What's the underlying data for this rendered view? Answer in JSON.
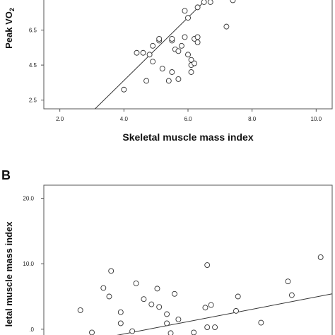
{
  "chart_data": [
    {
      "type": "scatter",
      "panel": "",
      "xlabel": "Skeletal muscle mass index",
      "ylabel": "Peak VO2",
      "xlim": [
        1.5,
        10.5
      ],
      "ylim": [
        2.0,
        8.3
      ],
      "x_ticks": [
        "2.0",
        "4.0",
        "6.0",
        "8.0",
        "10.0"
      ],
      "y_ticks": [
        "2.5",
        "4.5",
        "6.5"
      ],
      "fit_line": {
        "x1": 3.1,
        "y1": 2.0,
        "x2": 6.6,
        "y2": 8.3
      },
      "points": [
        {
          "x": 4.0,
          "y": 3.1
        },
        {
          "x": 4.4,
          "y": 5.2
        },
        {
          "x": 4.6,
          "y": 5.2
        },
        {
          "x": 4.7,
          "y": 3.6
        },
        {
          "x": 4.8,
          "y": 5.1
        },
        {
          "x": 4.9,
          "y": 4.7
        },
        {
          "x": 4.9,
          "y": 5.6
        },
        {
          "x": 5.1,
          "y": 5.9
        },
        {
          "x": 5.1,
          "y": 6.0
        },
        {
          "x": 5.2,
          "y": 4.3
        },
        {
          "x": 5.4,
          "y": 3.6
        },
        {
          "x": 5.5,
          "y": 4.1
        },
        {
          "x": 5.5,
          "y": 5.9
        },
        {
          "x": 5.5,
          "y": 6.0
        },
        {
          "x": 5.6,
          "y": 5.4
        },
        {
          "x": 5.7,
          "y": 5.3
        },
        {
          "x": 5.7,
          "y": 3.7
        },
        {
          "x": 5.8,
          "y": 5.6
        },
        {
          "x": 5.9,
          "y": 6.1
        },
        {
          "x": 5.9,
          "y": 7.6
        },
        {
          "x": 6.0,
          "y": 5.1
        },
        {
          "x": 6.0,
          "y": 7.2
        },
        {
          "x": 6.1,
          "y": 4.1
        },
        {
          "x": 6.1,
          "y": 4.5
        },
        {
          "x": 6.1,
          "y": 4.8
        },
        {
          "x": 6.2,
          "y": 4.6
        },
        {
          "x": 6.2,
          "y": 6.0
        },
        {
          "x": 6.3,
          "y": 5.8
        },
        {
          "x": 6.3,
          "y": 6.1
        },
        {
          "x": 6.3,
          "y": 7.8
        },
        {
          "x": 6.5,
          "y": 8.1
        },
        {
          "x": 6.7,
          "y": 8.1
        },
        {
          "x": 7.2,
          "y": 6.7
        },
        {
          "x": 7.4,
          "y": 8.2
        }
      ]
    },
    {
      "type": "scatter",
      "panel": "B",
      "xlabel": "",
      "ylabel": "letal muscle mass index",
      "xlim": [
        -1.5,
        13.5
      ],
      "ylim": [
        -1.1,
        22.0
      ],
      "x_ticks": [],
      "y_ticks": [
        ".0",
        "10.0",
        "20.0"
      ],
      "fit_line": {
        "x1": 2.0,
        "y1": -1.1,
        "x2": 13.5,
        "y2": 5.4
      },
      "points": [
        {
          "x": 0.4,
          "y": 2.9
        },
        {
          "x": 1.0,
          "y": -0.5
        },
        {
          "x": 1.6,
          "y": 6.3
        },
        {
          "x": 1.9,
          "y": 5.0
        },
        {
          "x": 2.0,
          "y": 8.9
        },
        {
          "x": 2.5,
          "y": 2.6
        },
        {
          "x": 2.5,
          "y": 0.9
        },
        {
          "x": 3.1,
          "y": -0.3
        },
        {
          "x": 3.3,
          "y": 7.0
        },
        {
          "x": 3.7,
          "y": 4.6
        },
        {
          "x": 4.1,
          "y": 3.8
        },
        {
          "x": 4.4,
          "y": 6.2
        },
        {
          "x": 4.5,
          "y": 3.4
        },
        {
          "x": 4.9,
          "y": 2.3
        },
        {
          "x": 4.9,
          "y": 0.9
        },
        {
          "x": 5.1,
          "y": -0.6
        },
        {
          "x": 5.3,
          "y": 5.4
        },
        {
          "x": 5.5,
          "y": 1.5
        },
        {
          "x": 6.3,
          "y": -0.5
        },
        {
          "x": 6.9,
          "y": 3.3
        },
        {
          "x": 7.0,
          "y": 9.8
        },
        {
          "x": 7.0,
          "y": 0.3
        },
        {
          "x": 7.2,
          "y": 3.7
        },
        {
          "x": 7.4,
          "y": 0.3
        },
        {
          "x": 8.5,
          "y": 2.8
        },
        {
          "x": 8.6,
          "y": 5.0
        },
        {
          "x": 9.8,
          "y": 1.0
        },
        {
          "x": 11.2,
          "y": 7.3
        },
        {
          "x": 11.4,
          "y": 5.2
        },
        {
          "x": 12.9,
          "y": 11.0
        }
      ]
    }
  ]
}
